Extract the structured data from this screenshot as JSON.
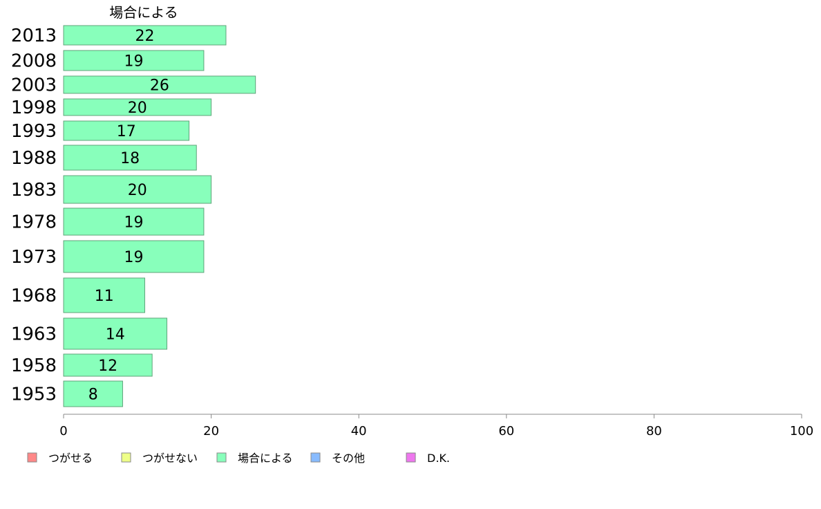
{
  "chart_data": {
    "type": "bar",
    "orientation": "horizontal",
    "stacked": true,
    "categories": [
      "2013",
      "2008",
      "2003",
      "1998",
      "1993",
      "1988",
      "1983",
      "1978",
      "1973",
      "1968",
      "1963",
      "1958",
      "1953"
    ],
    "series": [
      {
        "name": "場合による",
        "color": "#88ffbb",
        "values": [
          22,
          19,
          26,
          20,
          17,
          18,
          20,
          19,
          19,
          11,
          14,
          12,
          8
        ]
      }
    ],
    "series_title": "場合による",
    "xlim": [
      0,
      100
    ],
    "xticks": [
      0,
      20,
      40,
      60,
      80,
      100
    ],
    "grid": false,
    "legend_position": "bottom",
    "legend": [
      {
        "name": "つがせる",
        "color": "#ff8888"
      },
      {
        "name": "つがせない",
        "color": "#eeff88"
      },
      {
        "name": "場合による",
        "color": "#88ffbb"
      },
      {
        "name": "その他",
        "color": "#88bbff"
      },
      {
        "name": "D.K.",
        "color": "#ee77ee"
      }
    ]
  }
}
